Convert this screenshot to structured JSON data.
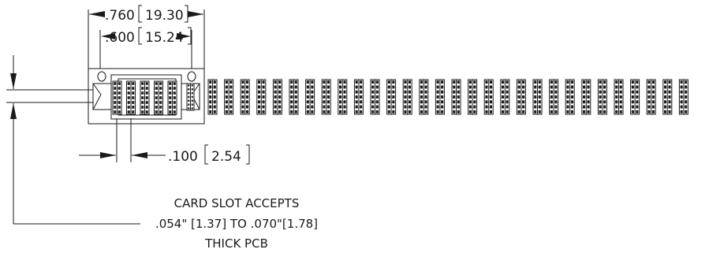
{
  "dimensions": {
    "overall": {
      "inch": ".760",
      "mm": "19.30"
    },
    "inner": {
      "inch": ".600",
      "mm": "15.24"
    },
    "pitch": {
      "inch": ".100",
      "mm": "2.54"
    }
  },
  "note": {
    "line1": "CARD SLOT ACCEPTS",
    "line2": ".054\" [1.37] TO .070\"[1.78]",
    "line3": "THICK PCB"
  },
  "connector": {
    "extra_contact_count": 30
  }
}
